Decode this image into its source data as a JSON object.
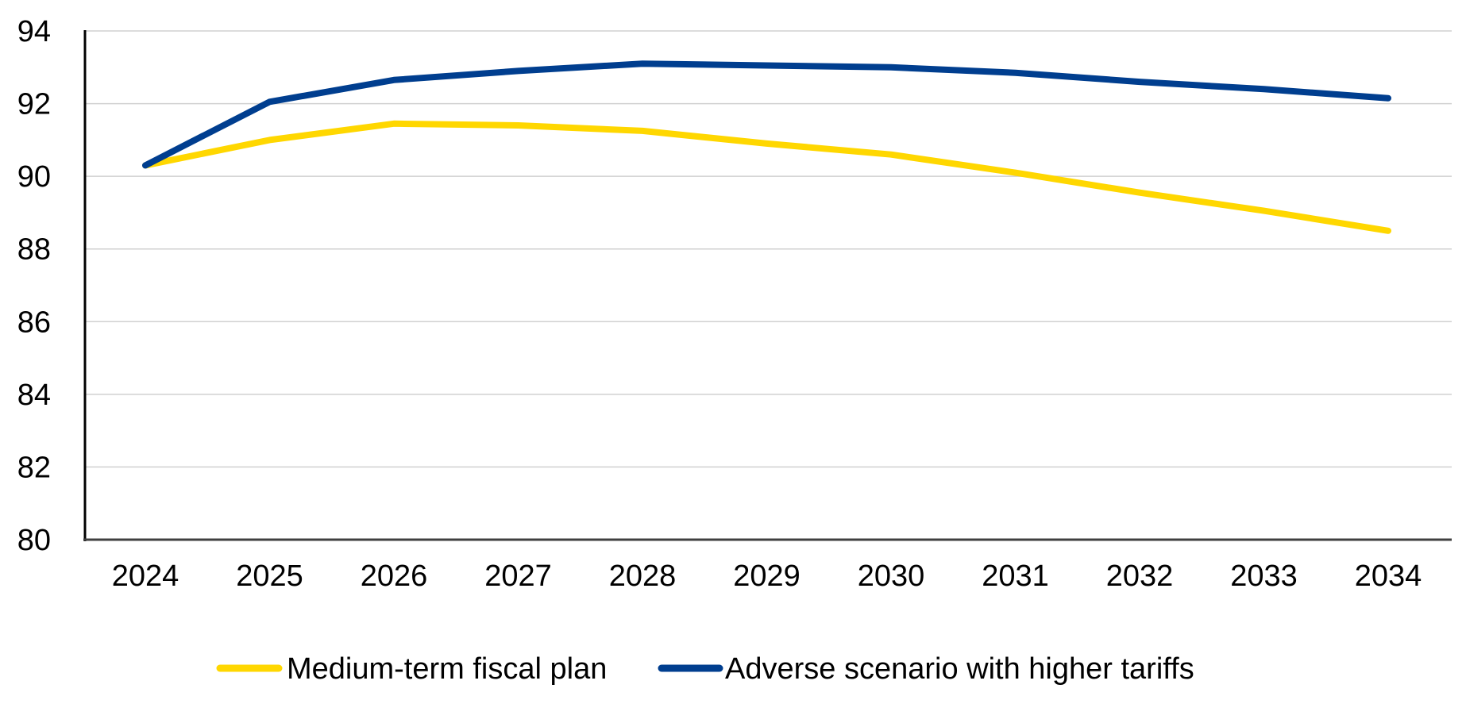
{
  "chart_data": {
    "type": "line",
    "title": "",
    "xlabel": "",
    "ylabel": "",
    "x": [
      2024,
      2025,
      2026,
      2027,
      2028,
      2029,
      2030,
      2031,
      2032,
      2033,
      2034
    ],
    "x_tick_labels": [
      "2024",
      "2025",
      "2026",
      "2027",
      "2028",
      "2029",
      "2030",
      "2031",
      "2032",
      "2033",
      "2034"
    ],
    "ylim": [
      80,
      94
    ],
    "y_ticks": [
      80,
      82,
      84,
      86,
      88,
      90,
      92,
      94
    ],
    "y_tick_labels": [
      "80",
      "82",
      "84",
      "86",
      "88",
      "90",
      "92",
      "94"
    ],
    "grid": "horizontal",
    "legend_position": "bottom",
    "series": [
      {
        "name": "Medium-term fiscal plan",
        "color": "#FFD700",
        "values": [
          90.3,
          91.0,
          91.45,
          91.4,
          91.25,
          90.9,
          90.6,
          90.1,
          89.55,
          89.05,
          88.5
        ]
      },
      {
        "name": "Adverse scenario with higher tariffs",
        "color": "#003E8F",
        "values": [
          90.3,
          92.05,
          92.65,
          92.9,
          93.1,
          93.05,
          93.0,
          92.85,
          92.6,
          92.4,
          92.15
        ]
      }
    ]
  }
}
